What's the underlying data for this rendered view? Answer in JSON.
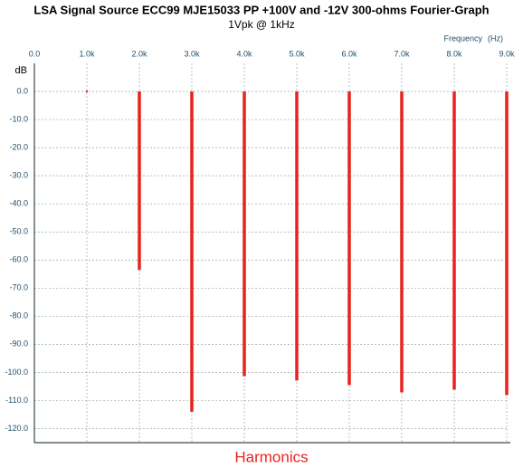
{
  "chart_data": {
    "type": "stem",
    "title": "LSA Signal Source ECC99 MJE15033 PP +100V and -12V 300-ohms Fourier-Graph",
    "subtitle": "1Vpk @ 1kHz",
    "x_label": "Frequency",
    "x_unit": "(Hz)",
    "y_label": "dB",
    "bottom_label": "Harmonics",
    "x": [
      1000,
      2000,
      3000,
      4000,
      5000,
      6000,
      7000,
      8000,
      9000
    ],
    "values": [
      0,
      -63.5,
      -114,
      -101.3,
      -102.9,
      -104.5,
      -107.1,
      -106.1,
      -108.1
    ],
    "color": "#e8231f",
    "xlim": [
      0,
      9000
    ],
    "xticks": [
      {
        "value": 0,
        "label": "0.0"
      },
      {
        "value": 1000,
        "label": "1.0k"
      },
      {
        "value": 2000,
        "label": "2.0k"
      },
      {
        "value": 3000,
        "label": "3.0k"
      },
      {
        "value": 4000,
        "label": "4.0k"
      },
      {
        "value": 5000,
        "label": "5.0k"
      },
      {
        "value": 6000,
        "label": "6.0k"
      },
      {
        "value": 7000,
        "label": "7.0k"
      },
      {
        "value": 8000,
        "label": "8.0k"
      },
      {
        "value": 9000,
        "label": "9.0k"
      }
    ],
    "ylim": [
      -125,
      10
    ],
    "yticks": [
      {
        "value": 0,
        "label": "0.0"
      },
      {
        "value": -10,
        "label": "-10.0"
      },
      {
        "value": -20,
        "label": "-20.0"
      },
      {
        "value": -30,
        "label": "-30.0"
      },
      {
        "value": -40,
        "label": "-40.0"
      },
      {
        "value": -50,
        "label": "-50.0"
      },
      {
        "value": -60,
        "label": "-60.0"
      },
      {
        "value": -70,
        "label": "-70.0"
      },
      {
        "value": -80,
        "label": "-80.0"
      },
      {
        "value": -90,
        "label": "-90.0"
      },
      {
        "value": -100,
        "label": "-100.0"
      },
      {
        "value": -110,
        "label": "-110.0"
      },
      {
        "value": -120,
        "label": "-120.0"
      }
    ],
    "grid": true
  }
}
